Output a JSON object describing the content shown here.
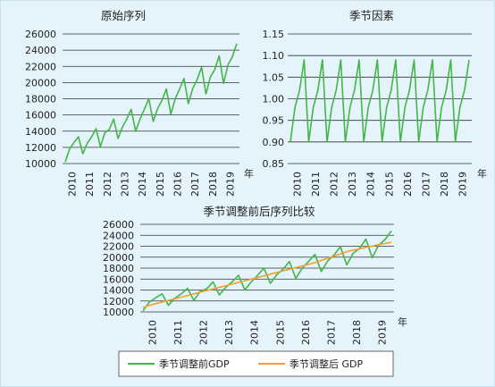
{
  "colors": {
    "background": "#e5f4fa",
    "series_before": "#43b649",
    "series_after": "#f0a030",
    "grid": "#333333"
  },
  "chart_data": [
    {
      "type": "line",
      "title": "原始序列",
      "xlabel": "年",
      "ylabel": "",
      "ylim": [
        10000,
        26000
      ],
      "yticks": [
        "26000",
        "24000",
        "22000",
        "20000",
        "18000",
        "16000",
        "14000",
        "12000",
        "10000"
      ],
      "xticks": [
        "2010",
        "2011",
        "2012",
        "2013",
        "2014",
        "2015",
        "2016",
        "2017",
        "2018",
        "2019"
      ],
      "grid": true,
      "series": [
        {
          "values": [
            10200,
            11800,
            12600,
            13300,
            11200,
            12500,
            13300,
            14300,
            12100,
            13800,
            14200,
            15500,
            13100,
            14500,
            15500,
            16700,
            14000,
            15500,
            16700,
            18000,
            15200,
            16800,
            17800,
            19200,
            16100,
            18000,
            19200,
            20500,
            17400,
            19300,
            20400,
            21900,
            18600,
            20700,
            21600,
            23300,
            19900,
            22200,
            23200,
            24800
          ]
        }
      ]
    },
    {
      "type": "line",
      "title": "季节因素",
      "xlabel": "年",
      "ylabel": "",
      "ylim": [
        0.85,
        1.15
      ],
      "yticks": [
        "1.15",
        "1.10",
        "1.05",
        "1.00",
        "0.95",
        "0.90",
        "0.85"
      ],
      "xticks": [
        "2010",
        "2011",
        "2012",
        "2013",
        "2014",
        "2015",
        "2016",
        "2017",
        "2018",
        "2019"
      ],
      "grid": true,
      "series": [
        {
          "values": [
            0.9,
            0.98,
            1.02,
            1.09,
            0.9,
            0.98,
            1.02,
            1.09,
            0.9,
            0.98,
            1.02,
            1.09,
            0.9,
            0.98,
            1.02,
            1.09,
            0.9,
            0.98,
            1.02,
            1.09,
            0.9,
            0.98,
            1.02,
            1.09,
            0.9,
            0.98,
            1.02,
            1.09,
            0.9,
            0.98,
            1.02,
            1.09,
            0.9,
            0.98,
            1.02,
            1.09,
            0.9,
            0.98,
            1.02,
            1.09
          ]
        }
      ]
    },
    {
      "type": "line",
      "title": "季节调整前后序列比较",
      "xlabel": "年",
      "ylabel": "",
      "ylim": [
        10000,
        26000
      ],
      "yticks": [
        "26000",
        "24000",
        "22000",
        "20000",
        "18000",
        "16000",
        "14000",
        "12000",
        "10000"
      ],
      "xticks": [
        "2010",
        "2011",
        "2012",
        "2013",
        "2014",
        "2015",
        "2016",
        "2017",
        "2018",
        "2019"
      ],
      "grid": true,
      "legend_position": "bottom",
      "series": [
        {
          "name": "季节调整前GDP",
          "values": [
            10200,
            11800,
            12600,
            13300,
            11200,
            12500,
            13300,
            14300,
            12100,
            13800,
            14200,
            15500,
            13100,
            14500,
            15500,
            16700,
            14000,
            15500,
            16700,
            18000,
            15200,
            16800,
            17800,
            19200,
            16100,
            18000,
            19200,
            20500,
            17400,
            19300,
            20400,
            21900,
            18600,
            20700,
            21600,
            23300,
            19900,
            22200,
            23200,
            24800
          ]
        },
        {
          "name": "季节调整后 GDP",
          "values": [
            10800,
            11200,
            11500,
            11800,
            12100,
            12400,
            12700,
            13000,
            13300,
            13600,
            13900,
            14200,
            14500,
            14800,
            15100,
            15400,
            15700,
            16000,
            16300,
            16600,
            16900,
            17200,
            17500,
            17800,
            18100,
            18400,
            18700,
            19000,
            19400,
            19800,
            20200,
            20600,
            21000,
            21300,
            21500,
            21800,
            22000,
            22300,
            22500,
            22700
          ]
        }
      ]
    }
  ]
}
